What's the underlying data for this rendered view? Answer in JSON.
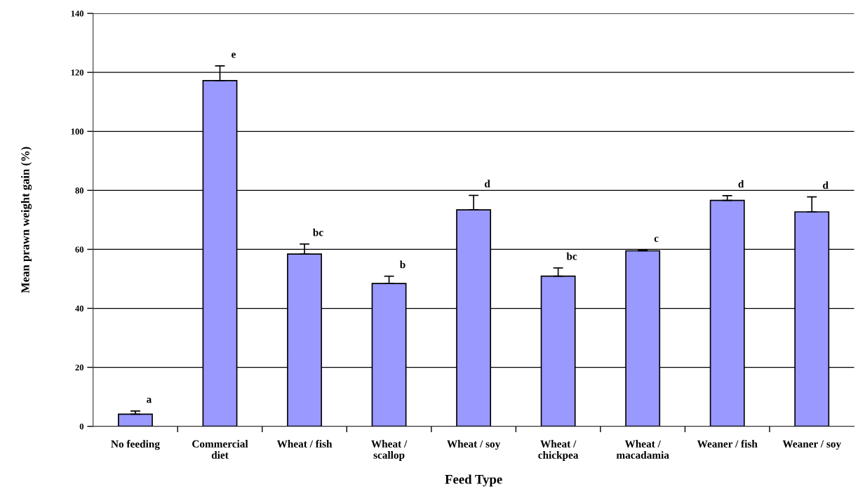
{
  "chart_data": {
    "type": "bar",
    "xlabel": "Feed Type",
    "ylabel": "Mean prawn weight gain (%)",
    "categories": [
      "No feeding",
      "Commercial\ndiet",
      "Wheat / fish",
      "Wheat /\nscallop",
      "Wheat / soy",
      "Wheat /\nchickpea",
      "Wheat /\nmacadamia",
      "Weaner / fish",
      "Weaner / soy"
    ],
    "values": [
      4.1,
      117.2,
      58.4,
      48.4,
      73.4,
      50.9,
      59.5,
      76.6,
      72.7
    ],
    "errors": [
      [
        4.1,
        5.2
      ],
      [
        117.2,
        122.2
      ],
      [
        58.4,
        61.8
      ],
      [
        48.4,
        50.9
      ],
      [
        73.4,
        78.3
      ],
      [
        50.9,
        53.7
      ],
      [
        59.5,
        59.8
      ],
      [
        76.6,
        78.2
      ],
      [
        72.7,
        77.8
      ]
    ],
    "color": "#9999ff",
    "ylim": [
      0,
      140
    ],
    "yticks": [
      0,
      20,
      40,
      60,
      80,
      100,
      120,
      140
    ],
    "grid": "y",
    "legend": false,
    "annotations": [
      "a",
      "e",
      "bc",
      "b",
      "d",
      "bc",
      "c",
      "d",
      "d"
    ]
  }
}
